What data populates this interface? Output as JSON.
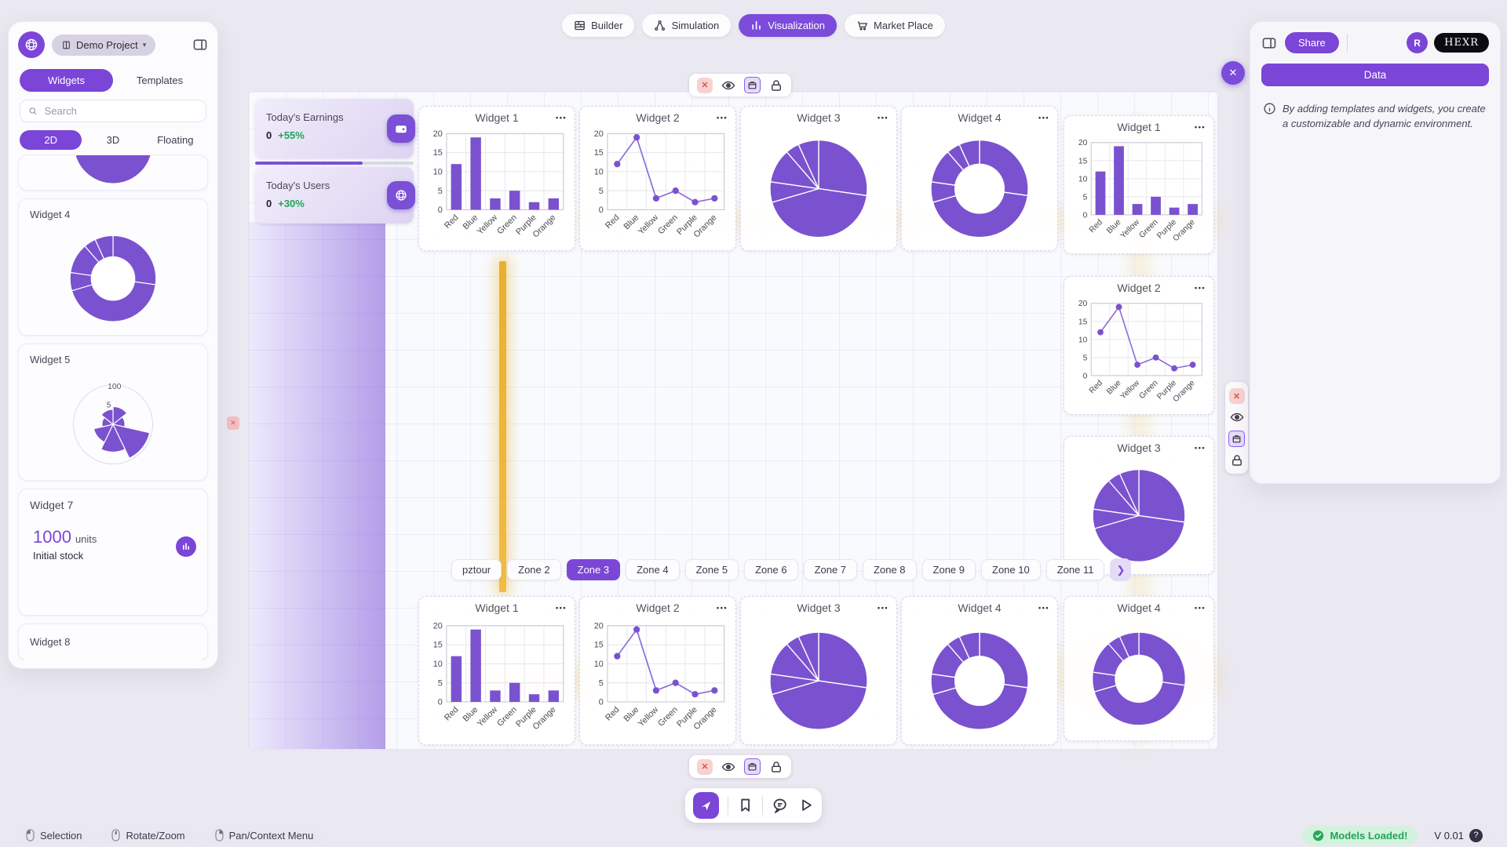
{
  "nav": {
    "items": [
      {
        "label": "Builder",
        "active": false
      },
      {
        "label": "Simulation",
        "active": false
      },
      {
        "label": "Visualization",
        "active": true
      },
      {
        "label": "Market Place",
        "active": false
      }
    ]
  },
  "sidebar": {
    "project_name": "Demo Project",
    "tabs": [
      "Widgets",
      "Templates"
    ],
    "active_tab": "Widgets",
    "search_placeholder": "Search",
    "filters": [
      "2D",
      "3D",
      "Floating"
    ],
    "active_filter": "2D",
    "cards": [
      {
        "title": "",
        "type": "pie"
      },
      {
        "title": "Widget 4",
        "type": "donut"
      },
      {
        "title": "Widget 5",
        "type": "polar"
      },
      {
        "title": "Widget 7",
        "type": "stat",
        "value": "1000",
        "unit": "units",
        "label": "Initial stock"
      },
      {
        "title": "Widget 8",
        "type": "empty"
      }
    ]
  },
  "canvas": {
    "stats": [
      {
        "title": "Today's Earnings",
        "value": "0",
        "delta": "+55%"
      },
      {
        "title": "Today's Users",
        "value": "0",
        "delta": "+30%"
      }
    ],
    "widgets": [
      {
        "title": "Widget 1",
        "type": "bar"
      },
      {
        "title": "Widget 2",
        "type": "line"
      },
      {
        "title": "Widget 3",
        "type": "pie"
      },
      {
        "title": "Widget 4",
        "type": "donut"
      },
      {
        "title": "Widget 1",
        "type": "bar"
      },
      {
        "title": "Widget 2",
        "type": "line"
      },
      {
        "title": "Widget 3",
        "type": "pie"
      },
      {
        "title": "Widget 1",
        "type": "bar"
      },
      {
        "title": "Widget 2",
        "type": "line"
      },
      {
        "title": "Widget 3",
        "type": "pie"
      },
      {
        "title": "Widget 4",
        "type": "donut"
      },
      {
        "title": "Widget 4",
        "type": "donut"
      }
    ]
  },
  "zones": {
    "items": [
      "pztour",
      "Zone 2",
      "Zone 3",
      "Zone 4",
      "Zone 5",
      "Zone 6",
      "Zone 7",
      "Zone 8",
      "Zone 9",
      "Zone 10",
      "Zone 11"
    ],
    "active": "Zone 3"
  },
  "right_panel": {
    "share_label": "Share",
    "avatar_initial": "R",
    "brand": "HEXR",
    "data_label": "Data",
    "info_text": "By adding templates and widgets, you create a customizable and dynamic environment."
  },
  "statusbar": {
    "modes": [
      {
        "label": "Selection"
      },
      {
        "label": "Rotate/Zoom"
      },
      {
        "label": "Pan/Context Menu"
      }
    ],
    "status_text": "Models Loaded!",
    "version": "V 0.01"
  },
  "chart_data": [
    {
      "id": "color-series",
      "type": "bar",
      "types_used": [
        "bar",
        "line",
        "pie",
        "donut"
      ],
      "title": "",
      "categories": [
        "Red",
        "Blue",
        "Yellow",
        "Green",
        "Purple",
        "Orange"
      ],
      "values": [
        12,
        19,
        3,
        5,
        2,
        3
      ],
      "xlabel": "",
      "ylabel": "",
      "ylim": [
        0,
        20
      ],
      "yticks": [
        0,
        5,
        10,
        15,
        20
      ],
      "grid": true,
      "color": "#7a52cf"
    },
    {
      "id": "widget5-polar",
      "type": "polar",
      "values": [
        45,
        30,
        95,
        70,
        50,
        28,
        38
      ],
      "rmax": 100,
      "radial_tick_labels": [
        "100",
        "5"
      ],
      "color": "#7a52cf"
    },
    {
      "id": "widget7-stat",
      "type": "stat",
      "value": "1000",
      "unit": "units",
      "label": "Initial stock"
    }
  ]
}
